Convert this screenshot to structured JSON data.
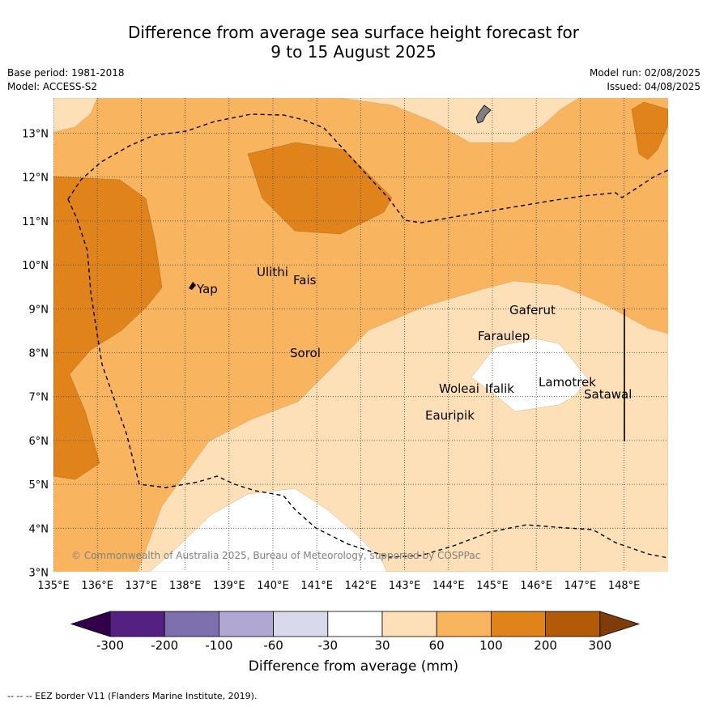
{
  "title_line1": "Difference from average sea surface height forecast for",
  "title_line2": "9 to 15 August 2025",
  "meta": {
    "base_period": "Base period: 1981-2018",
    "model": "Model: ACCESS-S2",
    "model_run": "Model run: 02/08/2025",
    "issued": "Issued: 04/08/2025"
  },
  "lat_labels": [
    "13°N",
    "12°N",
    "11°N",
    "10°N",
    "9°N",
    "8°N",
    "7°N",
    "6°N",
    "5°N",
    "4°N",
    "3°N"
  ],
  "lon_labels": [
    "135°E",
    "136°E",
    "137°E",
    "138°E",
    "139°E",
    "140°E",
    "141°E",
    "142°E",
    "143°E",
    "144°E",
    "145°E",
    "146°E",
    "147°E",
    "148°E"
  ],
  "places": [
    "Yap",
    "Ulithi",
    "Fais",
    "Sorol",
    "Gaferut",
    "Faraulep",
    "Woleai",
    "Ifalik",
    "Lamotrek",
    "Satawal",
    "Eauripik"
  ],
  "copyright": "© Commonwealth of Australia 2025, Bureau of Meteorology, supported by COSPPac",
  "colorbar": {
    "labels": [
      "-300",
      "-200",
      "-100",
      "-60",
      "-30",
      "30",
      "60",
      "100",
      "200",
      "300"
    ],
    "colors": [
      "#32004a",
      "#542082",
      "#7e6fae",
      "#b0a8d3",
      "#d9d9ec",
      "#ffffff",
      "#fde0b7",
      "#f8b45e",
      "#e0831a",
      "#b35a08",
      "#7f3b08"
    ],
    "title": "Difference from average (mm)"
  },
  "footer": "--  --  -- EEZ border V11 (Flanders Marine Institute, 2019).",
  "colors": {
    "light": "#fde0b7",
    "mid": "#f8b45e",
    "dark": "#e0831a",
    "white": "#ffffff",
    "land": "#808080"
  }
}
